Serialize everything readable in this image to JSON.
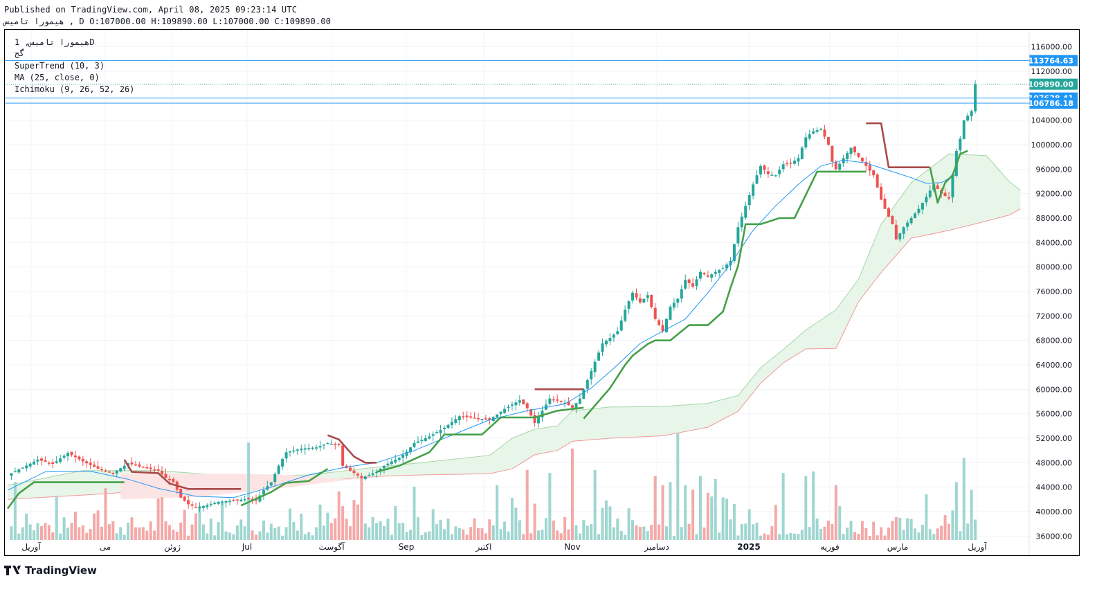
{
  "header": {
    "published": "Published on TradingView.com, April 08, 2025 09:23:14 UTC",
    "ohlc": "هیمورا تامیس , D O:107000.00 H:109890.00 L:107000.00 C:109890.00"
  },
  "legend": {
    "symbol": "هیمورا تامیس, 1D",
    "sub": "گج",
    "supertrend": "SuperTrend (10, 3)",
    "ma": "MA (25, close, 0)",
    "ichimoku": "Ichimoku (9, 26, 52, 26)"
  },
  "footer": {
    "brand": "TradingView",
    "logo": "tradingview-logo-icon"
  },
  "colors": {
    "up": "#26a69a",
    "down": "#ef5350",
    "supertrend_up": "#43a047",
    "supertrend_down": "#a84a4a",
    "ma": "#2196f3",
    "cloud_up": "#a5d6a7",
    "cloud_down": "#f8bbd0",
    "hline": "#2196f3"
  },
  "chart_data": {
    "type": "candlestick",
    "y_axis": {
      "min": 34000,
      "max": 118000,
      "ticks": [
        "116000.00",
        "112000.00",
        "104000.00",
        "100000.00",
        "96000.00",
        "92000.00",
        "88000.00",
        "84000.00",
        "80000.00",
        "76000.00",
        "72000.00",
        "68000.00",
        "64000.00",
        "60000.00",
        "56000.00",
        "52000.00",
        "48000.00",
        "44000.00",
        "40000.00",
        "36000.00"
      ]
    },
    "x_axis": {
      "labels": [
        "آوریل",
        "می",
        "ژوئن",
        "Jul",
        "آگوست",
        "Sep",
        "اکتبر",
        "Nov",
        "دسامبر",
        "2025",
        "فوریه",
        "مارس",
        "آوریل"
      ]
    },
    "price_labels": [
      {
        "value": 113764.63,
        "text": "113764.63",
        "color": "#2196f3",
        "line": "solid"
      },
      {
        "value": 109890.0,
        "text": "109890.00",
        "color": "#26a69a",
        "line": "dotted"
      },
      {
        "value": 107628.41,
        "text": "107628.41",
        "color": "#2196f3",
        "line": "solid"
      },
      {
        "value": 106786.18,
        "text": "106786.18",
        "color": "#2196f3",
        "line": "solid"
      }
    ],
    "close_anchors": [
      [
        0,
        46000
      ],
      [
        4,
        47200
      ],
      [
        8,
        48500
      ],
      [
        12,
        47800
      ],
      [
        16,
        49600
      ],
      [
        20,
        48200
      ],
      [
        24,
        47000
      ],
      [
        28,
        46300
      ],
      [
        32,
        47900
      ],
      [
        36,
        47200
      ],
      [
        40,
        46700
      ],
      [
        42,
        45500
      ],
      [
        44,
        44800
      ],
      [
        46,
        42300
      ],
      [
        48,
        41200
      ],
      [
        50,
        40700
      ],
      [
        52,
        40900
      ],
      [
        56,
        41600
      ],
      [
        60,
        41800
      ],
      [
        64,
        42100
      ],
      [
        66,
        41800
      ],
      [
        68,
        43500
      ],
      [
        70,
        44800
      ],
      [
        72,
        47500
      ],
      [
        74,
        49700
      ],
      [
        78,
        50300
      ],
      [
        82,
        50500
      ],
      [
        85,
        51200
      ],
      [
        88,
        50900
      ],
      [
        89,
        47500
      ],
      [
        92,
        46300
      ],
      [
        94,
        45500
      ],
      [
        96,
        46000
      ],
      [
        98,
        46500
      ],
      [
        100,
        47500
      ],
      [
        102,
        48200
      ],
      [
        104,
        48800
      ],
      [
        106,
        49800
      ],
      [
        108,
        51200
      ],
      [
        112,
        52300
      ],
      [
        116,
        53700
      ],
      [
        120,
        55600
      ],
      [
        124,
        55300
      ],
      [
        128,
        55000
      ],
      [
        132,
        56800
      ],
      [
        136,
        58200
      ],
      [
        138,
        56900
      ],
      [
        140,
        54500
      ],
      [
        144,
        58500
      ],
      [
        148,
        57800
      ],
      [
        150,
        57000
      ],
      [
        152,
        58500
      ],
      [
        154,
        61500
      ],
      [
        156,
        64500
      ],
      [
        158,
        67500
      ],
      [
        160,
        68400
      ],
      [
        162,
        69500
      ],
      [
        164,
        73000
      ],
      [
        166,
        75800
      ],
      [
        168,
        74200
      ],
      [
        170,
        75400
      ],
      [
        172,
        71500
      ],
      [
        174,
        69500
      ],
      [
        176,
        73500
      ],
      [
        178,
        74800
      ],
      [
        180,
        77900
      ],
      [
        182,
        76800
      ],
      [
        184,
        79200
      ],
      [
        186,
        78400
      ],
      [
        188,
        79200
      ],
      [
        190,
        79800
      ],
      [
        192,
        81000
      ],
      [
        194,
        86500
      ],
      [
        196,
        90000
      ],
      [
        198,
        93500
      ],
      [
        200,
        96500
      ],
      [
        202,
        95200
      ],
      [
        204,
        95000
      ],
      [
        206,
        96800
      ],
      [
        208,
        97000
      ],
      [
        210,
        97800
      ],
      [
        212,
        101200
      ],
      [
        214,
        102200
      ],
      [
        216,
        102600
      ],
      [
        218,
        100000
      ],
      [
        219,
        97200
      ],
      [
        220,
        96000
      ],
      [
        222,
        97800
      ],
      [
        224,
        99500
      ],
      [
        226,
        98000
      ],
      [
        228,
        96500
      ],
      [
        230,
        95000
      ],
      [
        232,
        91000
      ],
      [
        233,
        89500
      ],
      [
        235,
        87000
      ],
      [
        236,
        84500
      ],
      [
        238,
        86500
      ],
      [
        240,
        88000
      ],
      [
        242,
        89500
      ],
      [
        244,
        91500
      ],
      [
        246,
        93500
      ],
      [
        248,
        92000
      ],
      [
        250,
        91200
      ],
      [
        252,
        99000
      ],
      [
        253,
        101000
      ],
      [
        254,
        104000
      ],
      [
        256,
        105500
      ],
      [
        257,
        109890
      ]
    ],
    "supertrend": [
      {
        "trend": "up",
        "points": [
          [
            0,
            40500
          ],
          [
            3,
            43000
          ],
          [
            7,
            44800
          ],
          [
            31,
            44800
          ]
        ]
      },
      {
        "trend": "down",
        "points": [
          [
            31,
            48500
          ],
          [
            33,
            46500
          ],
          [
            40,
            46300
          ],
          [
            43,
            44600
          ],
          [
            48,
            43700
          ],
          [
            62,
            43700
          ]
        ]
      },
      {
        "trend": "up",
        "points": [
          [
            62,
            41000
          ],
          [
            70,
            43200
          ],
          [
            74,
            44700
          ],
          [
            80,
            45000
          ],
          [
            85,
            47000
          ]
        ]
      },
      {
        "trend": "down",
        "points": [
          [
            85,
            52500
          ],
          [
            88,
            51800
          ],
          [
            92,
            49000
          ],
          [
            95,
            48000
          ],
          [
            98,
            48000
          ]
        ]
      },
      {
        "trend": "up",
        "points": [
          [
            98,
            46500
          ],
          [
            104,
            47500
          ],
          [
            112,
            49700
          ],
          [
            116,
            52600
          ],
          [
            126,
            52600
          ],
          [
            131,
            55400
          ],
          [
            140,
            55400
          ],
          [
            146,
            56500
          ],
          [
            153,
            57000
          ]
        ]
      },
      {
        "trend": "down",
        "points": [
          [
            140,
            60000
          ],
          [
            153,
            60000
          ]
        ]
      },
      {
        "trend": "up",
        "points": [
          [
            153,
            55200
          ],
          [
            160,
            60200
          ],
          [
            164,
            64000
          ],
          [
            166,
            65500
          ],
          [
            170,
            67400
          ],
          [
            172,
            68000
          ],
          [
            176,
            68000
          ],
          [
            181,
            70500
          ],
          [
            186,
            70500
          ],
          [
            190,
            72700
          ],
          [
            192,
            76600
          ],
          [
            194,
            80200
          ],
          [
            196,
            87000
          ],
          [
            200,
            87000
          ],
          [
            205,
            88000
          ],
          [
            209,
            88000
          ],
          [
            215,
            95600
          ],
          [
            228,
            95600
          ]
        ]
      },
      {
        "trend": "down",
        "points": [
          [
            228,
            103500
          ],
          [
            232,
            103500
          ],
          [
            234,
            96300
          ],
          [
            245,
            96300
          ]
        ]
      },
      {
        "trend": "up",
        "points": [
          [
            245,
            96300
          ],
          [
            247,
            90500
          ],
          [
            249,
            93800
          ],
          [
            251,
            95000
          ],
          [
            253,
            98500
          ],
          [
            255,
            99000
          ]
        ]
      }
    ],
    "ma": [
      [
        0,
        43500
      ],
      [
        10,
        46500
      ],
      [
        22,
        46600
      ],
      [
        32,
        45300
      ],
      [
        40,
        43800
      ],
      [
        50,
        42500
      ],
      [
        60,
        42300
      ],
      [
        70,
        44000
      ],
      [
        80,
        46000
      ],
      [
        90,
        47300
      ],
      [
        98,
        48000
      ],
      [
        108,
        50000
      ],
      [
        118,
        52500
      ],
      [
        128,
        55000
      ],
      [
        138,
        56500
      ],
      [
        148,
        57600
      ],
      [
        155,
        60200
      ],
      [
        162,
        64000
      ],
      [
        168,
        67500
      ],
      [
        174,
        69500
      ],
      [
        180,
        71500
      ],
      [
        186,
        75800
      ],
      [
        192,
        80500
      ],
      [
        198,
        86000
      ],
      [
        204,
        90000
      ],
      [
        210,
        93500
      ],
      [
        216,
        96500
      ],
      [
        222,
        97500
      ],
      [
        228,
        97000
      ],
      [
        234,
        95800
      ],
      [
        240,
        94600
      ],
      [
        244,
        93700
      ],
      [
        248,
        93800
      ],
      [
        252,
        95200
      ]
    ],
    "cloud_green_top": [
      [
        0,
        44300
      ],
      [
        20,
        46700
      ],
      [
        40,
        46700
      ],
      [
        60,
        45800
      ],
      [
        80,
        46000
      ],
      [
        100,
        47400
      ],
      [
        110,
        48000
      ],
      [
        128,
        49200
      ],
      [
        134,
        52000
      ],
      [
        140,
        53500
      ],
      [
        146,
        54000
      ],
      [
        150,
        56500
      ],
      [
        160,
        57100
      ],
      [
        174,
        57200
      ],
      [
        186,
        57700
      ],
      [
        194,
        59000
      ],
      [
        200,
        63500
      ],
      [
        206,
        66500
      ],
      [
        212,
        69700
      ],
      [
        220,
        73000
      ],
      [
        226,
        78000
      ],
      [
        232,
        87000
      ],
      [
        240,
        93800
      ],
      [
        250,
        98500
      ],
      [
        260,
        98200
      ],
      [
        266,
        94000
      ],
      [
        269,
        92500
      ]
    ],
    "cloud_green_bottom": [
      [
        0,
        42000
      ],
      [
        20,
        42700
      ],
      [
        40,
        43500
      ],
      [
        60,
        43500
      ],
      [
        80,
        45000
      ],
      [
        100,
        45800
      ],
      [
        110,
        46000
      ],
      [
        128,
        46200
      ],
      [
        134,
        47000
      ],
      [
        140,
        49300
      ],
      [
        146,
        50000
      ],
      [
        150,
        51500
      ],
      [
        160,
        52000
      ],
      [
        174,
        52400
      ],
      [
        186,
        53800
      ],
      [
        194,
        56400
      ],
      [
        200,
        61000
      ],
      [
        206,
        64300
      ],
      [
        212,
        66600
      ],
      [
        220,
        66700
      ],
      [
        226,
        74300
      ],
      [
        232,
        79100
      ],
      [
        240,
        84700
      ],
      [
        250,
        86000
      ],
      [
        260,
        87500
      ],
      [
        266,
        88500
      ],
      [
        269,
        89500
      ]
    ],
    "cloud_red_top": [
      [
        30,
        46200
      ],
      [
        50,
        46200
      ],
      [
        60,
        46200
      ],
      [
        75,
        46000
      ],
      [
        85,
        45500
      ],
      [
        92,
        45300
      ]
    ],
    "cloud_red_bottom": [
      [
        30,
        42000
      ],
      [
        50,
        42400
      ],
      [
        60,
        43000
      ],
      [
        75,
        44000
      ],
      [
        85,
        44800
      ],
      [
        92,
        45300
      ]
    ],
    "volume_note": "volume histogram coloured by candle direction; spike values relative"
  }
}
